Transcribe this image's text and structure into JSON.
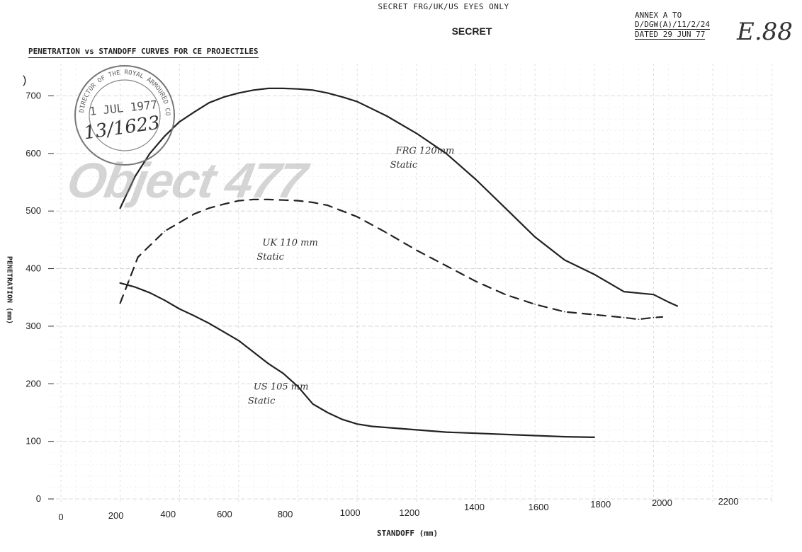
{
  "header": {
    "classification_top": "SECRET FRG/UK/US EYES ONLY",
    "classification": "SECRET",
    "title": "PENETRATION vs STANDOFF CURVES FOR CE PROJECTILES",
    "annex_line1": "ANNEX A TO",
    "annex_line2": "D/DGW(A)/11/2/24",
    "annex_line3": "DATED 29 JUN 77",
    "handwritten_ref": "E.88"
  },
  "stamp": {
    "ring_text": "DIRECTOR OF THE ROYAL ARMOURED CORPS",
    "date": "1 JUL 1977",
    "number": "13/1623"
  },
  "watermark": "Object 477",
  "chart_data": {
    "type": "line",
    "title": "PENETRATION vs STANDOFF CURVES FOR CE PROJECTILES",
    "xlabel": "STANDOFF (mm)",
    "ylabel": "PENETRATION (mm)",
    "xlim": [
      0,
      2200
    ],
    "ylim": [
      0,
      700
    ],
    "x_ticks": [
      0,
      200,
      400,
      600,
      800,
      1000,
      1200,
      1400,
      1600,
      1800,
      2000,
      2200
    ],
    "y_ticks": [
      0,
      100,
      200,
      300,
      400,
      500,
      600,
      700
    ],
    "grid": true,
    "legend": "none (inline annotations)",
    "series": [
      {
        "name": "FRG 120mm Static",
        "label_lines": [
          "FRG 120mm",
          "Static"
        ],
        "style": "solid",
        "color": "#222222",
        "x": [
          200,
          250,
          300,
          350,
          400,
          450,
          500,
          550,
          600,
          650,
          700,
          750,
          800,
          850,
          900,
          950,
          1000,
          1100,
          1200,
          1300,
          1400,
          1500,
          1600,
          1700,
          1800,
          1900,
          2000,
          2050,
          2080
        ],
        "y": [
          505,
          560,
          600,
          630,
          655,
          672,
          688,
          698,
          705,
          710,
          713,
          713,
          712,
          710,
          705,
          698,
          690,
          665,
          635,
          600,
          555,
          505,
          455,
          415,
          390,
          360,
          355,
          342,
          335
        ]
      },
      {
        "name": "UK 110 mm Static",
        "label_lines": [
          "UK 110 mm",
          "Static"
        ],
        "style": "dashed",
        "color": "#222222",
        "x": [
          200,
          230,
          260,
          300,
          350,
          400,
          450,
          500,
          550,
          600,
          650,
          700,
          750,
          800,
          850,
          900,
          950,
          1000,
          1100,
          1200,
          1300,
          1400,
          1500,
          1600,
          1700,
          1800,
          1900,
          1950,
          2000,
          2030
        ],
        "y": [
          340,
          380,
          420,
          440,
          465,
          480,
          495,
          505,
          512,
          518,
          520,
          520,
          519,
          518,
          515,
          510,
          500,
          490,
          462,
          432,
          405,
          378,
          355,
          338,
          325,
          320,
          315,
          312,
          315,
          316
        ]
      },
      {
        "name": "US 105 mm Static",
        "label_lines": [
          "US 105 mm",
          "Static"
        ],
        "style": "solid",
        "color": "#222222",
        "x": [
          200,
          250,
          300,
          350,
          400,
          450,
          500,
          550,
          600,
          650,
          700,
          750,
          800,
          850,
          900,
          950,
          1000,
          1050,
          1100,
          1200,
          1300,
          1400,
          1500,
          1600,
          1700,
          1800
        ],
        "y": [
          375,
          368,
          358,
          345,
          330,
          318,
          305,
          290,
          275,
          255,
          235,
          218,
          195,
          165,
          150,
          138,
          130,
          126,
          124,
          120,
          116,
          114,
          112,
          110,
          108,
          107
        ]
      }
    ]
  }
}
